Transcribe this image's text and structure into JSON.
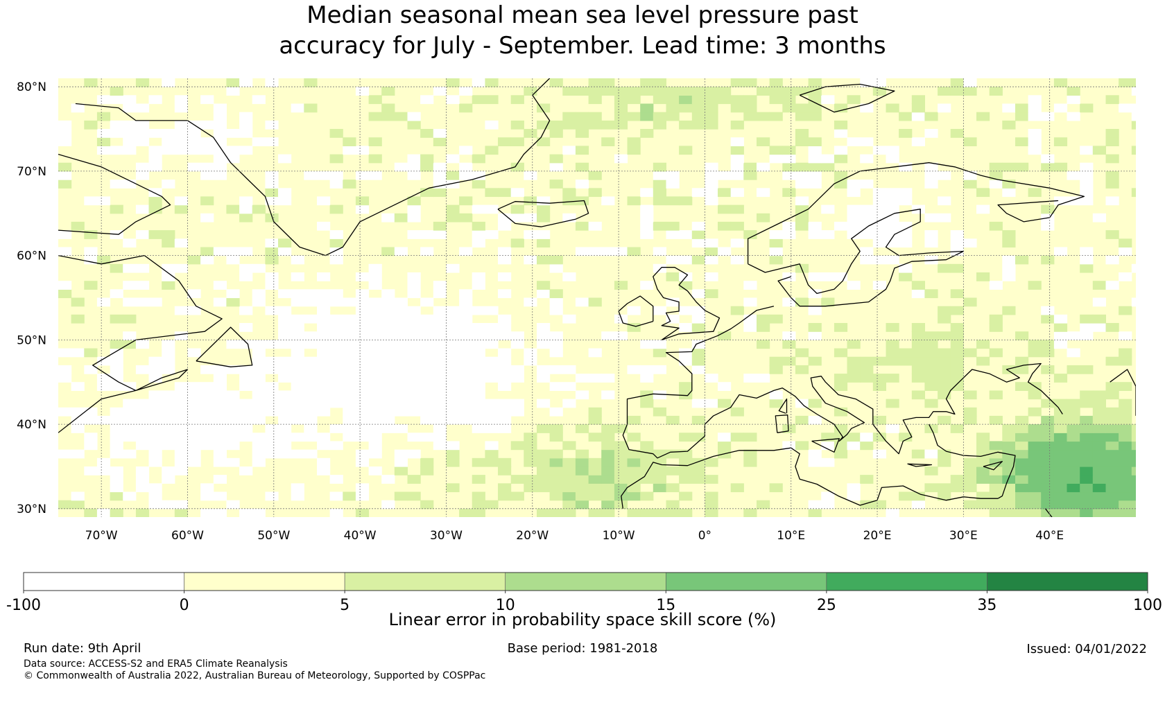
{
  "title": {
    "line1": "Median seasonal mean sea level pressure past",
    "line2": "accuracy for July - September. Lead time: 3 months"
  },
  "map": {
    "lat_labels": [
      "80°N",
      "70°N",
      "60°N",
      "50°N",
      "40°N",
      "30°N"
    ],
    "lat_values": [
      80,
      70,
      60,
      50,
      40,
      30
    ],
    "lon_labels": [
      "70°W",
      "60°W",
      "50°W",
      "40°W",
      "30°W",
      "20°W",
      "10°W",
      "0°",
      "10°E",
      "20°E",
      "30°E",
      "40°E"
    ],
    "lon_values": [
      -70,
      -60,
      -50,
      -40,
      -30,
      -20,
      -10,
      0,
      10,
      20,
      30,
      40
    ],
    "extent": {
      "lon": [
        -75,
        50
      ],
      "lat": [
        29,
        81
      ]
    }
  },
  "colorbar": {
    "bounds": [
      "-100",
      "0",
      "5",
      "10",
      "15",
      "25",
      "35",
      "100"
    ],
    "colors": [
      "#ffffff",
      "#ffffcc",
      "#d9f0a3",
      "#addd8e",
      "#78c679",
      "#41ab5d",
      "#238443"
    ],
    "label": "Linear error in probability space skill score (%)"
  },
  "footer": {
    "run_date": "Run date: 9th April",
    "base_period": "Base period: 1981-2018",
    "issued": "Issued: 04/01/2022",
    "data_source": "Data source: ACCESS-S2 and ERA5 Climate Reanalysis",
    "copyright": "© Commonwealth of Australia 2022, Australian Bureau of Meteorology, Supported by COSPPac"
  }
}
